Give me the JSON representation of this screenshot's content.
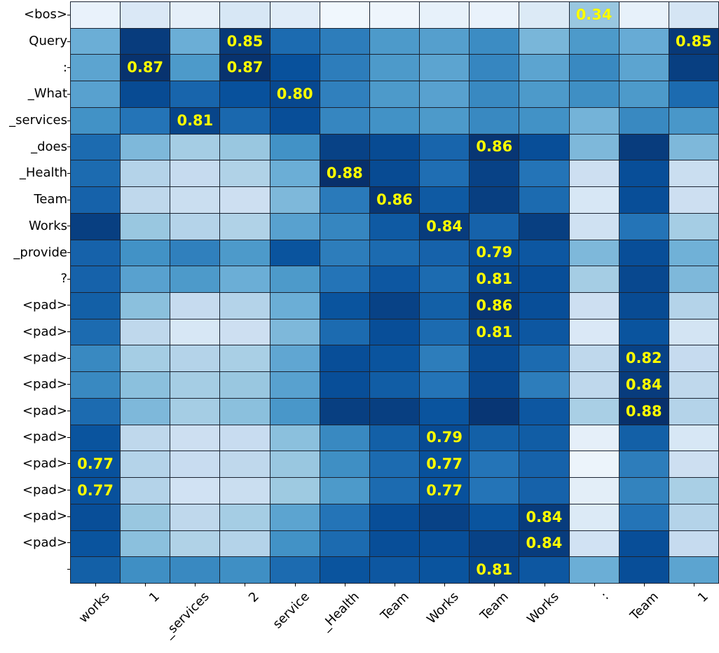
{
  "figure": {
    "background": "#ffffff"
  },
  "chart_data": {
    "type": "heatmap",
    "title": "",
    "xlabel": "",
    "ylabel": "",
    "legend": "none",
    "grid": "on",
    "row_labels": [
      "<bos>",
      "Query",
      ":",
      "_What",
      "_services",
      "_does",
      "_Health",
      "Team",
      "Works",
      "_provide",
      "?",
      "<pad>",
      "<pad>",
      "<pad>",
      "<pad>",
      "<pad>",
      "<pad>",
      "<pad>",
      "<pad>",
      "<pad>",
      "<pad>",
      ""
    ],
    "col_labels": [
      "works",
      "1",
      "_services",
      "2",
      "service",
      "_Health",
      "Team",
      "Works",
      "Team",
      "Works",
      ":",
      "Team",
      "1"
    ],
    "vmin": 0.0,
    "vmax": 0.88,
    "values": [
      [
        0.06,
        0.13,
        0.08,
        0.14,
        0.1,
        0.03,
        0.04,
        0.07,
        0.06,
        0.12,
        0.34,
        0.07,
        0.15
      ],
      [
        0.44,
        0.84,
        0.44,
        0.85,
        0.68,
        0.62,
        0.52,
        0.5,
        0.57,
        0.41,
        0.52,
        0.45,
        0.85
      ],
      [
        0.48,
        0.87,
        0.52,
        0.87,
        0.77,
        0.62,
        0.52,
        0.48,
        0.59,
        0.48,
        0.58,
        0.48,
        0.83
      ],
      [
        0.49,
        0.79,
        0.7,
        0.77,
        0.8,
        0.61,
        0.52,
        0.49,
        0.58,
        0.52,
        0.56,
        0.52,
        0.68
      ],
      [
        0.55,
        0.65,
        0.81,
        0.69,
        0.78,
        0.59,
        0.55,
        0.52,
        0.58,
        0.55,
        0.42,
        0.58,
        0.53
      ],
      [
        0.68,
        0.4,
        0.31,
        0.34,
        0.55,
        0.82,
        0.79,
        0.7,
        0.86,
        0.78,
        0.4,
        0.84,
        0.4
      ],
      [
        0.68,
        0.27,
        0.22,
        0.28,
        0.44,
        0.88,
        0.79,
        0.67,
        0.82,
        0.65,
        0.19,
        0.78,
        0.2
      ],
      [
        0.71,
        0.24,
        0.2,
        0.19,
        0.4,
        0.63,
        0.86,
        0.74,
        0.83,
        0.68,
        0.14,
        0.78,
        0.19
      ],
      [
        0.83,
        0.34,
        0.27,
        0.28,
        0.49,
        0.59,
        0.74,
        0.84,
        0.71,
        0.83,
        0.18,
        0.65,
        0.31
      ],
      [
        0.71,
        0.55,
        0.61,
        0.52,
        0.76,
        0.62,
        0.68,
        0.71,
        0.79,
        0.75,
        0.4,
        0.78,
        0.43
      ],
      [
        0.71,
        0.49,
        0.52,
        0.44,
        0.52,
        0.65,
        0.75,
        0.68,
        0.81,
        0.78,
        0.31,
        0.8,
        0.4
      ],
      [
        0.72,
        0.37,
        0.22,
        0.27,
        0.44,
        0.76,
        0.82,
        0.72,
        0.86,
        0.78,
        0.19,
        0.79,
        0.27
      ],
      [
        0.68,
        0.24,
        0.14,
        0.19,
        0.4,
        0.68,
        0.78,
        0.68,
        0.81,
        0.75,
        0.13,
        0.76,
        0.16
      ],
      [
        0.58,
        0.31,
        0.27,
        0.3,
        0.47,
        0.78,
        0.76,
        0.62,
        0.79,
        0.68,
        0.24,
        0.82,
        0.22
      ],
      [
        0.58,
        0.37,
        0.31,
        0.34,
        0.49,
        0.78,
        0.73,
        0.65,
        0.8,
        0.62,
        0.24,
        0.84,
        0.24
      ],
      [
        0.68,
        0.4,
        0.31,
        0.37,
        0.53,
        0.83,
        0.83,
        0.76,
        0.86,
        0.75,
        0.3,
        0.88,
        0.27
      ],
      [
        0.76,
        0.24,
        0.19,
        0.21,
        0.37,
        0.58,
        0.72,
        0.79,
        0.72,
        0.73,
        0.08,
        0.72,
        0.14
      ],
      [
        0.77,
        0.27,
        0.21,
        0.24,
        0.34,
        0.56,
        0.68,
        0.77,
        0.65,
        0.71,
        0.05,
        0.62,
        0.19
      ],
      [
        0.77,
        0.27,
        0.17,
        0.2,
        0.33,
        0.52,
        0.68,
        0.77,
        0.65,
        0.71,
        0.09,
        0.6,
        0.3
      ],
      [
        0.78,
        0.34,
        0.24,
        0.31,
        0.48,
        0.65,
        0.78,
        0.82,
        0.76,
        0.84,
        0.12,
        0.65,
        0.27
      ],
      [
        0.76,
        0.37,
        0.28,
        0.27,
        0.55,
        0.68,
        0.78,
        0.78,
        0.82,
        0.84,
        0.17,
        0.78,
        0.22
      ],
      [
        0.72,
        0.56,
        0.58,
        0.56,
        0.68,
        0.76,
        0.75,
        0.76,
        0.81,
        0.75,
        0.44,
        0.78,
        0.48
      ]
    ],
    "annotations": [
      {
        "row": 0,
        "col": 10,
        "text": "0.34"
      },
      {
        "row": 1,
        "col": 3,
        "text": "0.85"
      },
      {
        "row": 1,
        "col": 12,
        "text": "0.85"
      },
      {
        "row": 2,
        "col": 1,
        "text": "0.87"
      },
      {
        "row": 2,
        "col": 3,
        "text": "0.87"
      },
      {
        "row": 3,
        "col": 4,
        "text": "0.80"
      },
      {
        "row": 4,
        "col": 2,
        "text": "0.81"
      },
      {
        "row": 5,
        "col": 8,
        "text": "0.86"
      },
      {
        "row": 6,
        "col": 5,
        "text": "0.88"
      },
      {
        "row": 7,
        "col": 6,
        "text": "0.86"
      },
      {
        "row": 8,
        "col": 7,
        "text": "0.84"
      },
      {
        "row": 9,
        "col": 8,
        "text": "0.79"
      },
      {
        "row": 10,
        "col": 8,
        "text": "0.81"
      },
      {
        "row": 11,
        "col": 8,
        "text": "0.86"
      },
      {
        "row": 12,
        "col": 8,
        "text": "0.81"
      },
      {
        "row": 13,
        "col": 11,
        "text": "0.82"
      },
      {
        "row": 14,
        "col": 11,
        "text": "0.84"
      },
      {
        "row": 15,
        "col": 11,
        "text": "0.88"
      },
      {
        "row": 16,
        "col": 7,
        "text": "0.79"
      },
      {
        "row": 17,
        "col": 0,
        "text": "0.77"
      },
      {
        "row": 17,
        "col": 7,
        "text": "0.77"
      },
      {
        "row": 18,
        "col": 0,
        "text": "0.77"
      },
      {
        "row": 18,
        "col": 7,
        "text": "0.77"
      },
      {
        "row": 19,
        "col": 9,
        "text": "0.84"
      },
      {
        "row": 20,
        "col": 9,
        "text": "0.84"
      },
      {
        "row": 21,
        "col": 8,
        "text": "0.81"
      }
    ],
    "colormap": {
      "name": "Blues",
      "stops": [
        [
          0.0,
          "#f7fbff"
        ],
        [
          0.125,
          "#deebf7"
        ],
        [
          0.25,
          "#c6dbef"
        ],
        [
          0.375,
          "#9ecae1"
        ],
        [
          0.5,
          "#6baed6"
        ],
        [
          0.625,
          "#4292c6"
        ],
        [
          0.75,
          "#2171b5"
        ],
        [
          0.875,
          "#08519c"
        ],
        [
          1.0,
          "#08306b"
        ]
      ]
    },
    "annotation_color": "#ffff00",
    "grid_line_color": "#1b2433",
    "label_color": "#000000"
  }
}
